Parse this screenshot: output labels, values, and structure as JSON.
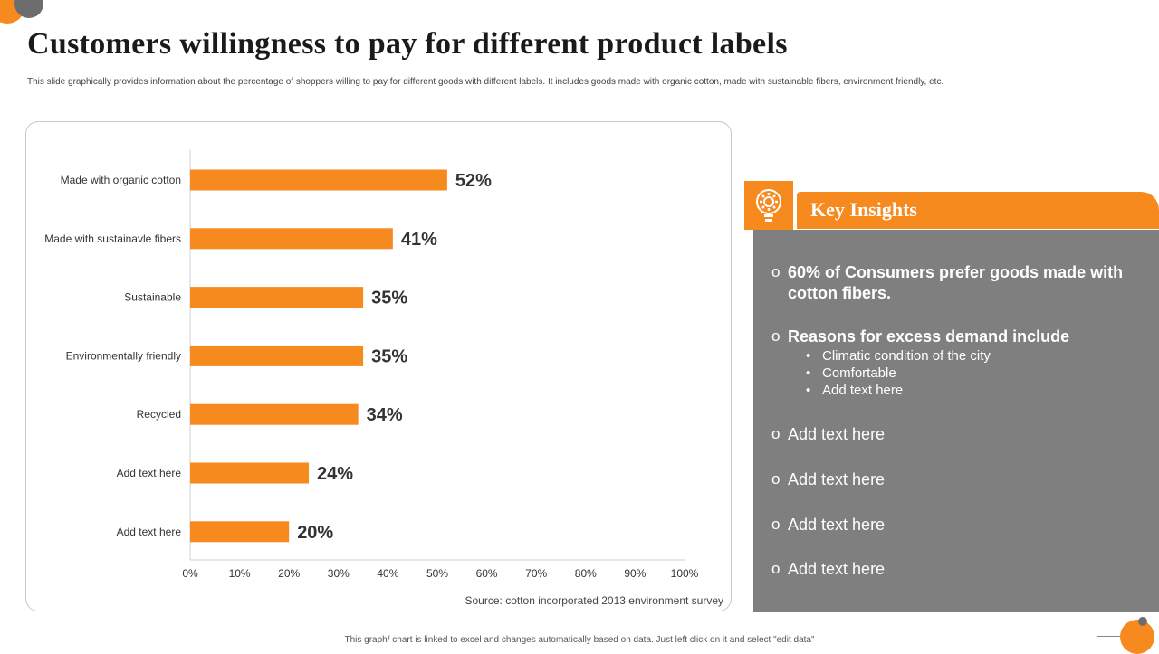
{
  "page": {
    "title": "Customers willingness to pay for different product labels",
    "subtitle": "This slide graphically provides information about the percentage of shoppers willing to pay for different goods with different labels. It includes goods made  with organic cotton, made with sustainable fibers, environment friendly, etc.",
    "footer": "This graph/ chart is linked to excel and changes automatically based on data. Just left click on it and select \"edit data\""
  },
  "colors": {
    "accent": "#f68a1f",
    "panel_gray": "#7f7f7f",
    "dark_gray": "#6d6d6d"
  },
  "chart_data": {
    "type": "bar",
    "orientation": "horizontal",
    "categories": [
      "Made with organic cotton",
      "Made with sustainavle fibers",
      "Sustainable",
      "Environmentally friendly",
      "Recycled",
      "Add text here",
      "Add text here"
    ],
    "values": [
      52,
      41,
      35,
      35,
      34,
      24,
      20
    ],
    "data_labels": [
      "52%",
      "41%",
      "35%",
      "35%",
      "34%",
      "24%",
      "20%"
    ],
    "xlim": [
      0,
      100
    ],
    "x_ticks": [
      "0%",
      "10%",
      "20%",
      "30%",
      "40%",
      "50%",
      "60%",
      "70%",
      "80%",
      "90%",
      "100%"
    ],
    "grid": false,
    "bar_color": "#f68a1f",
    "source": "Source: cotton incorporated 2013 environment survey"
  },
  "insights": {
    "icon": "lightbulb-gear-icon",
    "title": "Key Insights",
    "item1": "60% of Consumers prefer goods made with cotton fibers.",
    "item2": "Reasons for excess demand include",
    "item2_subs": [
      "Climatic condition of the city",
      "Comfortable",
      "Add text here"
    ],
    "item3": "Add text here",
    "item4": "Add text here",
    "item5": "Add text here",
    "item6": "Add text here",
    "bullet": "o",
    "sub_bullet": "•"
  }
}
